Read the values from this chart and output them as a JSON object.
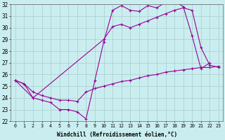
{
  "xlabel": "Windchill (Refroidissement éolien,°C)",
  "xlim": [
    -0.5,
    23.5
  ],
  "ylim": [
    22,
    32
  ],
  "ytick_min": 22,
  "ytick_max": 32,
  "xtick_count": 24,
  "background_color": "#caeef0",
  "grid_color": "#aacccc",
  "line_color": "#990099",
  "line1_x": [
    0,
    1,
    2,
    3,
    4,
    5,
    6,
    7,
    8,
    9,
    10,
    11,
    12,
    13,
    14,
    15,
    16,
    17,
    18,
    19,
    20,
    21,
    22
  ],
  "line1_y": [
    25.5,
    25.2,
    24.0,
    23.8,
    23.6,
    23.0,
    23.0,
    22.8,
    22.2,
    25.5,
    28.8,
    31.5,
    31.9,
    31.5,
    31.4,
    31.9,
    31.7,
    32.2,
    32.3,
    31.8,
    29.3,
    26.5,
    27.0
  ],
  "line2_x": [
    0,
    2,
    10,
    11,
    12,
    13,
    14,
    15,
    16,
    17,
    18,
    19,
    20,
    21,
    22,
    23
  ],
  "line2_y": [
    25.5,
    24.0,
    29.0,
    30.1,
    30.3,
    30.0,
    30.3,
    30.6,
    30.9,
    31.2,
    31.5,
    31.7,
    31.5,
    28.3,
    26.8,
    26.6
  ],
  "line3_x": [
    0,
    1,
    2,
    3,
    4,
    5,
    6,
    7,
    8,
    9,
    10,
    11,
    12,
    13,
    14,
    15,
    16,
    17,
    18,
    19,
    20,
    21,
    22,
    23
  ],
  "line3_y": [
    25.5,
    25.2,
    24.5,
    24.2,
    24.0,
    23.8,
    23.8,
    23.7,
    24.5,
    24.8,
    25.0,
    25.2,
    25.4,
    25.5,
    25.7,
    25.9,
    26.0,
    26.2,
    26.3,
    26.4,
    26.5,
    26.6,
    26.6,
    26.7
  ]
}
